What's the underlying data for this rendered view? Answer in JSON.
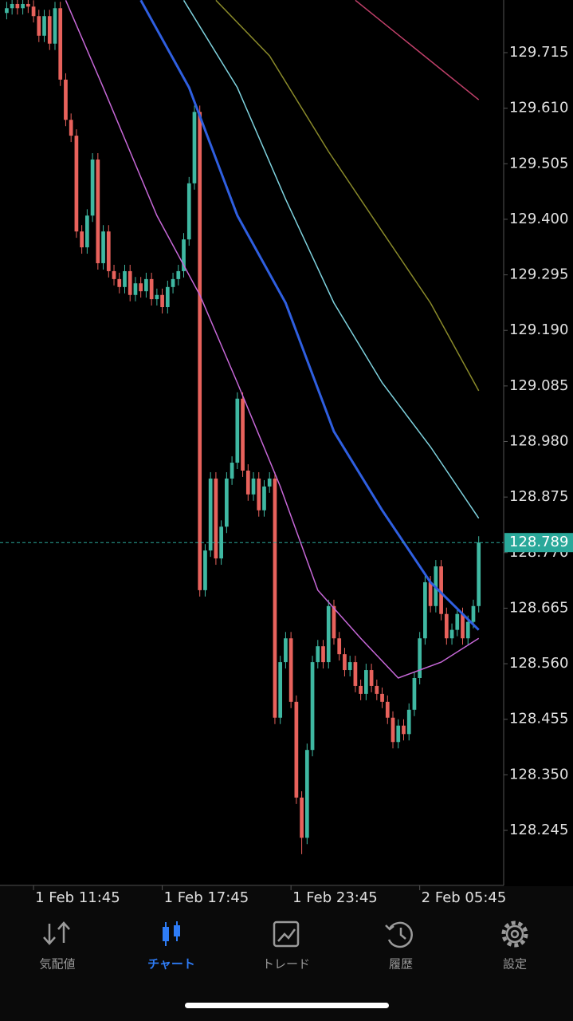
{
  "chart_data": {
    "type": "candlestick",
    "ylim": [
      128.141,
      129.8145
    ],
    "yticks": [
      {
        "value": 129.715,
        "label": "129.715"
      },
      {
        "value": 129.61,
        "label": "129.610"
      },
      {
        "value": 129.505,
        "label": "129.505"
      },
      {
        "value": 129.4,
        "label": "129.400"
      },
      {
        "value": 129.295,
        "label": "129.295"
      },
      {
        "value": 129.19,
        "label": "129.190"
      },
      {
        "value": 129.085,
        "label": "129.085"
      },
      {
        "value": 128.98,
        "label": "128.980"
      },
      {
        "value": 128.875,
        "label": "128.875"
      },
      {
        "value": 128.77,
        "label": "128.770"
      },
      {
        "value": 128.665,
        "label": "128.665"
      },
      {
        "value": 128.56,
        "label": "128.560"
      },
      {
        "value": 128.455,
        "label": "128.455"
      },
      {
        "value": 128.35,
        "label": "128.350"
      },
      {
        "value": 128.245,
        "label": "128.245"
      }
    ],
    "xlim": [
      -1.25,
      92.65
    ],
    "xticks": [
      {
        "value": 5,
        "label": "1 Feb 11:45"
      },
      {
        "value": 29,
        "label": "1 Feb 17:45"
      },
      {
        "value": 53,
        "label": "1 Feb 23:45"
      },
      {
        "value": 77,
        "label": "2 Feb 05:45"
      }
    ],
    "up_color": "#3fb8a2",
    "down_color": "#e8625c",
    "open": [
      129.79,
      129.799,
      129.807,
      129.799,
      129.807,
      129.802,
      129.784,
      129.747,
      129.784,
      129.732,
      129.799,
      129.664,
      129.588,
      129.558,
      129.377,
      129.347,
      129.407,
      129.513,
      129.317,
      129.377,
      129.302,
      129.287,
      129.272,
      129.302,
      129.257,
      129.279,
      129.264,
      129.287,
      129.249,
      129.257,
      129.234,
      129.272,
      129.287,
      129.302,
      129.362,
      129.468,
      129.603,
      128.699,
      128.774,
      128.91,
      128.759,
      128.819,
      128.91,
      128.94,
      129.061,
      128.925,
      128.88,
      128.91,
      128.85,
      128.895,
      128.91,
      128.458,
      128.563,
      128.608,
      128.488,
      128.307,
      128.231,
      128.397,
      128.563,
      128.593,
      128.563,
      128.669,
      128.608,
      128.578,
      128.548,
      128.563,
      128.518,
      128.503,
      128.548,
      128.518,
      128.503,
      128.488,
      128.458,
      128.412,
      128.443,
      128.427,
      128.473,
      128.533,
      128.608,
      128.714,
      128.669,
      128.744,
      128.654,
      128.608,
      128.624,
      128.654,
      128.608,
      128.639,
      128.669
    ],
    "high": [
      129.811,
      129.819,
      129.819,
      129.819,
      129.819,
      129.814,
      129.796,
      129.796,
      129.796,
      129.811,
      129.811,
      129.676,
      129.6,
      129.57,
      129.389,
      129.419,
      129.525,
      129.525,
      129.389,
      129.389,
      129.314,
      129.299,
      129.314,
      129.314,
      129.291,
      129.291,
      129.299,
      129.299,
      129.269,
      129.269,
      129.284,
      129.299,
      129.314,
      129.374,
      129.48,
      129.615,
      129.615,
      128.786,
      128.922,
      128.922,
      128.831,
      128.922,
      128.952,
      129.073,
      129.073,
      128.937,
      128.922,
      128.922,
      128.907,
      128.922,
      128.922,
      128.575,
      128.62,
      128.62,
      128.5,
      128.319,
      128.409,
      128.575,
      128.605,
      128.605,
      128.681,
      128.681,
      128.62,
      128.59,
      128.575,
      128.575,
      128.53,
      128.56,
      128.56,
      128.53,
      128.515,
      128.5,
      128.47,
      128.455,
      128.455,
      128.485,
      128.545,
      128.62,
      128.726,
      128.726,
      128.756,
      128.756,
      128.666,
      128.636,
      128.666,
      128.666,
      128.651,
      128.681,
      128.801
    ],
    "low": [
      129.778,
      129.787,
      129.787,
      129.787,
      129.79,
      129.772,
      129.735,
      129.735,
      129.72,
      129.72,
      129.652,
      129.576,
      129.546,
      129.365,
      129.335,
      129.335,
      129.395,
      129.305,
      129.305,
      129.29,
      129.275,
      129.26,
      129.26,
      129.245,
      129.245,
      129.252,
      129.252,
      129.237,
      129.237,
      129.222,
      129.222,
      129.26,
      129.275,
      129.29,
      129.35,
      129.456,
      128.687,
      128.687,
      128.762,
      128.747,
      128.747,
      128.807,
      128.898,
      128.928,
      128.913,
      128.868,
      128.868,
      128.838,
      128.838,
      128.883,
      128.446,
      128.446,
      128.551,
      128.476,
      128.295,
      128.2,
      128.219,
      128.385,
      128.551,
      128.551,
      128.551,
      128.596,
      128.566,
      128.536,
      128.536,
      128.506,
      128.491,
      128.491,
      128.506,
      128.491,
      128.476,
      128.446,
      128.4,
      128.4,
      128.415,
      128.415,
      128.461,
      128.521,
      128.596,
      128.657,
      128.657,
      128.642,
      128.596,
      128.596,
      128.612,
      128.596,
      128.596,
      128.627,
      128.657
    ],
    "close": [
      129.799,
      129.807,
      129.799,
      129.807,
      129.802,
      129.784,
      129.747,
      129.784,
      129.732,
      129.799,
      129.664,
      129.588,
      129.558,
      129.377,
      129.347,
      129.407,
      129.513,
      129.317,
      129.377,
      129.302,
      129.287,
      129.272,
      129.302,
      129.257,
      129.279,
      129.264,
      129.287,
      129.249,
      129.257,
      129.234,
      129.272,
      129.287,
      129.302,
      129.362,
      129.468,
      129.603,
      128.699,
      128.774,
      128.91,
      128.759,
      128.819,
      128.91,
      128.94,
      129.061,
      128.925,
      128.88,
      128.91,
      128.85,
      128.895,
      128.91,
      128.458,
      128.563,
      128.608,
      128.488,
      128.307,
      128.231,
      128.397,
      128.563,
      128.593,
      128.563,
      128.669,
      128.608,
      128.578,
      128.548,
      128.563,
      128.518,
      128.503,
      128.548,
      128.518,
      128.503,
      128.488,
      128.458,
      128.412,
      128.443,
      128.427,
      128.473,
      128.533,
      128.608,
      128.714,
      128.669,
      128.744,
      128.654,
      128.608,
      128.624,
      128.654,
      128.608,
      128.639,
      128.669,
      128.789
    ],
    "lines": [
      {
        "color": "#2f5fe0",
        "x": [
          25,
          34,
          43,
          52,
          61,
          70,
          79,
          88
        ],
        "values": [
          129.814,
          129.649,
          129.407,
          129.242,
          128.999,
          128.85,
          128.714,
          128.624
        ]
      },
      {
        "color": "#7fd3df",
        "x": [
          33,
          43,
          52,
          61,
          70,
          79,
          88
        ],
        "values": [
          129.814,
          129.649,
          129.438,
          129.242,
          129.091,
          128.97,
          128.835
        ]
      },
      {
        "color": "#8a8a2a",
        "x": [
          39,
          49,
          60,
          70,
          79,
          88
        ],
        "values": [
          129.814,
          129.709,
          129.528,
          129.377,
          129.242,
          129.076
        ]
      },
      {
        "color": "#c0406a",
        "x": [
          65,
          88
        ],
        "values": [
          129.814,
          129.626
        ]
      },
      {
        "color": "#c768d8",
        "x": [
          11,
          18,
          28,
          36,
          43,
          51,
          58,
          66,
          73,
          81,
          88
        ],
        "values": [
          129.814,
          129.649,
          129.407,
          129.257,
          129.091,
          128.895,
          128.699,
          128.608,
          128.533,
          128.563,
          128.608
        ]
      }
    ],
    "current_price": 128.789,
    "current_color": "#2aa89a"
  },
  "tab_bar": {
    "items": [
      "気配値",
      "チャート",
      "トレード",
      "履歴",
      "設定"
    ],
    "active": 1
  }
}
